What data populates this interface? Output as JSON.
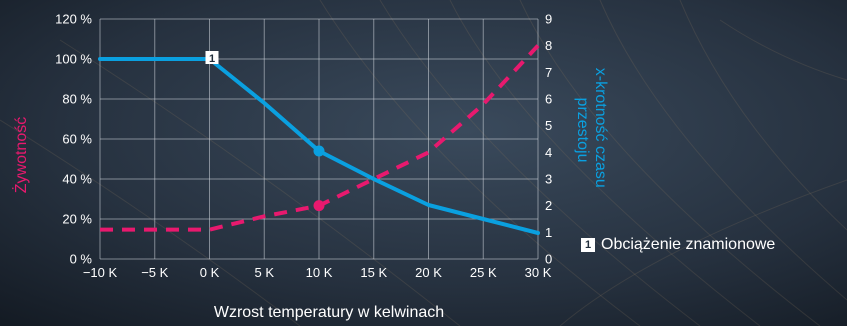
{
  "chart_data": {
    "type": "line",
    "xlabel": "Wzrost temperatury w kelwinach",
    "ylabel_left": "Żywotność",
    "ylabel_right": "x-krotność czasu przestoju",
    "x_ticks": [
      "−10 K",
      "−5 K",
      "0 K",
      "5 K",
      "10 K",
      "15 K",
      "20 K",
      "25 K",
      "30 K"
    ],
    "x": [
      -10,
      -5,
      0,
      5,
      10,
      15,
      20,
      25,
      30
    ],
    "xlim": [
      -10,
      30
    ],
    "y_left_ticks": [
      "0 %",
      "20 %",
      "40 %",
      "60 %",
      "80 %",
      "100 %",
      "120 %"
    ],
    "ylim_left": [
      0,
      120
    ],
    "y_right_ticks": [
      "0",
      "1",
      "2",
      "3",
      "4",
      "5",
      "6",
      "7",
      "8",
      "9"
    ],
    "ylim_right": [
      0,
      9
    ],
    "grid": true,
    "series": [
      {
        "axis": "left",
        "color": "#0aa0e0",
        "style": "solid",
        "points": [
          [
            -10,
            100
          ],
          [
            -5,
            100
          ],
          [
            0,
            100
          ],
          [
            5,
            78
          ],
          [
            10,
            54
          ],
          [
            15,
            40
          ],
          [
            20,
            27
          ],
          [
            25,
            20
          ],
          [
            30,
            13
          ]
        ],
        "highlight": [
          10,
          54
        ]
      },
      {
        "axis": "right",
        "color": "#e8196e",
        "style": "dashed",
        "points": [
          [
            -10,
            1.1
          ],
          [
            -5,
            1.1
          ],
          [
            0,
            1.1
          ],
          [
            5,
            1.6
          ],
          [
            10,
            2.0
          ],
          [
            15,
            3.0
          ],
          [
            20,
            4.0
          ],
          [
            25,
            5.8
          ],
          [
            30,
            8.0
          ]
        ],
        "highlight": [
          10,
          2.0
        ]
      }
    ],
    "annotations": [
      {
        "marker": "1",
        "x": 0,
        "y_left": 100
      }
    ]
  },
  "legend": {
    "marker": "1",
    "label": "Obciążenie znamionowe"
  }
}
